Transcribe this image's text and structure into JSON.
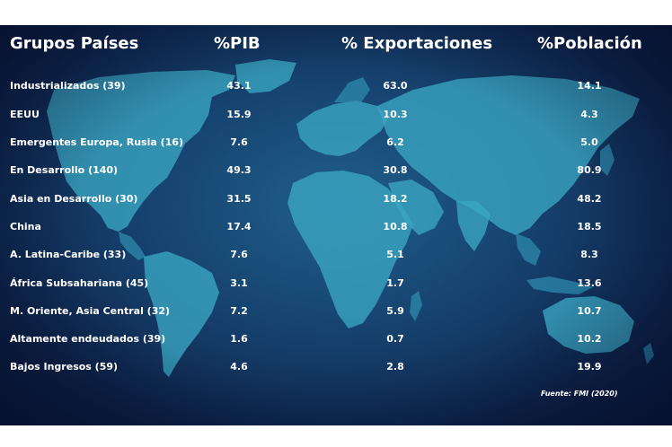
{
  "chart_data": {
    "type": "table",
    "columns": [
      "Grupos Países",
      "%PIB",
      "% Exportaciones",
      "%Población"
    ],
    "rows": [
      {
        "grupo": "Industrializados (39)",
        "pib": "43.1",
        "exportaciones": "63.0",
        "poblacion": "14.1"
      },
      {
        "grupo": "EEUU",
        "pib": "15.9",
        "exportaciones": "10.3",
        "poblacion": "4.3"
      },
      {
        "grupo": "Emergentes Europa, Rusia (16)",
        "pib": "7.6",
        "exportaciones": "6.2",
        "poblacion": "5.0"
      },
      {
        "grupo": "En Desarrollo (140)",
        "pib": "49.3",
        "exportaciones": "30.8",
        "poblacion": "80.9"
      },
      {
        "grupo": "Asia en Desarrollo (30)",
        "pib": "31.5",
        "exportaciones": "18.2",
        "poblacion": "48.2"
      },
      {
        "grupo": "China",
        "pib": "17.4",
        "exportaciones": "10.8",
        "poblacion": "18.5"
      },
      {
        "grupo": "A. Latina-Caribe (33)",
        "pib": "7.6",
        "exportaciones": "5.1",
        "poblacion": "8.3"
      },
      {
        "grupo": "África Subsahariana (45)",
        "pib": "3.1",
        "exportaciones": "1.7",
        "poblacion": "13.6"
      },
      {
        "grupo": "M. Oriente, Asia Central (32)",
        "pib": "7.2",
        "exportaciones": "5.9",
        "poblacion": "10.7"
      },
      {
        "grupo": "Altamente endeudados (39)",
        "pib": "1.6",
        "exportaciones": "0.7",
        "poblacion": "10.2"
      },
      {
        "grupo": "Bajos Ingresos (59)",
        "pib": "4.6",
        "exportaciones": "2.8",
        "poblacion": "19.9"
      }
    ],
    "source": "Fuente: FMI (2020)"
  },
  "colors": {
    "background": "#153f6b",
    "land": "#3ba6c3",
    "text": "#ffffff"
  }
}
